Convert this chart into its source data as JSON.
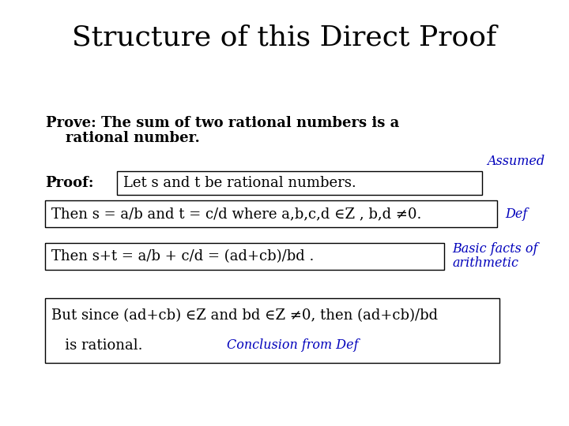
{
  "title": "Structure of this Direct Proof",
  "title_fontsize": 26,
  "title_font": "DejaVu Serif",
  "background_color": "#ffffff",
  "text_color_black": "#000000",
  "text_color_blue": "#0000bb",
  "prove_text_line1": "Prove: The sum of two rational numbers is a",
  "prove_text_line2": "    rational number.",
  "proof_label": "Proof:",
  "box1_text": "Let s and t be rational numbers.",
  "box1_label": "Assumed",
  "box2_text": "Then s = a/b and t = c/d where a,b,c,d ∈Z , b,d ≠0.",
  "box2_label": "Def",
  "box3_text": "Then s+t = a/b + c/d = (ad+cb)/bd .",
  "box3_label_line1": "Basic facts of",
  "box3_label_line2": "arithmetic",
  "box4_text_line1": "But since (ad+cb) ∈Z and bd ∈Z ≠0, then (ad+cb)/bd",
  "box4_text_line2": "   is rational.",
  "box4_label": "Conclusion from Def",
  "body_fontsize": 13,
  "label_fontsize": 11.5
}
